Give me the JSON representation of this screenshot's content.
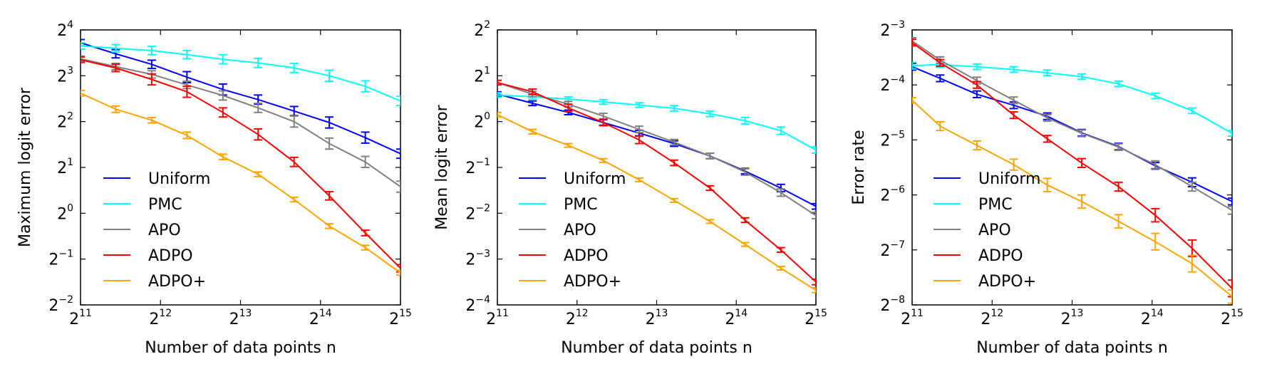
{
  "chart_data": [
    {
      "type": "line",
      "title": "",
      "xlabel": "Number of data points n",
      "ylabel": "Maximum logit error",
      "xscale": "log2",
      "yscale": "log2",
      "xlim_exp": [
        11,
        15
      ],
      "ylim_exp": [
        -2,
        4
      ],
      "x_ticks": [
        {
          "base": "2",
          "exp": "11"
        },
        {
          "base": "2",
          "exp": "12"
        },
        {
          "base": "2",
          "exp": "13"
        },
        {
          "base": "2",
          "exp": "14"
        },
        {
          "base": "2",
          "exp": "15"
        }
      ],
      "y_ticks": [
        {
          "base": "2",
          "exp": "−2",
          "v": -2
        },
        {
          "base": "2",
          "exp": "−1",
          "v": -1
        },
        {
          "base": "2",
          "exp": "0",
          "v": 0
        },
        {
          "base": "2",
          "exp": "1",
          "v": 1
        },
        {
          "base": "2",
          "exp": "2",
          "v": 2
        },
        {
          "base": "2",
          "exp": "3",
          "v": 3
        },
        {
          "base": "2",
          "exp": "4",
          "v": 4
        }
      ],
      "legend_position": "lower-left",
      "x_exp": [
        11.0,
        11.44,
        11.89,
        12.33,
        12.78,
        13.22,
        13.67,
        14.11,
        14.56,
        15.0
      ],
      "series": [
        {
          "name": "Uniform",
          "color": "#0000ff",
          "y_exp": [
            3.72,
            3.48,
            3.25,
            2.97,
            2.7,
            2.48,
            2.23,
            1.98,
            1.65,
            1.3
          ],
          "err": [
            0.07,
            0.09,
            0.09,
            0.12,
            0.12,
            0.1,
            0.1,
            0.12,
            0.12,
            0.1
          ]
        },
        {
          "name": "PMC",
          "color": "#00ffff",
          "y_exp": [
            3.65,
            3.6,
            3.55,
            3.46,
            3.36,
            3.28,
            3.17,
            3.0,
            2.77,
            2.45
          ],
          "err": [
            0.07,
            0.08,
            0.09,
            0.09,
            0.1,
            0.1,
            0.1,
            0.12,
            0.12,
            0.1
          ]
        },
        {
          "name": "APO",
          "color": "#808080",
          "y_exp": [
            3.37,
            3.2,
            3.03,
            2.8,
            2.57,
            2.3,
            2.0,
            1.52,
            1.12,
            0.58
          ],
          "err": [
            0.06,
            0.07,
            0.08,
            0.08,
            0.1,
            0.1,
            0.12,
            0.12,
            0.12,
            0.12
          ]
        },
        {
          "name": "ADPO",
          "color": "#ff0000",
          "y_exp": [
            3.35,
            3.17,
            2.92,
            2.65,
            2.2,
            1.72,
            1.12,
            0.38,
            -0.43,
            -1.2
          ],
          "err": [
            0.06,
            0.08,
            0.12,
            0.12,
            0.1,
            0.12,
            0.1,
            0.09,
            0.06,
            0.08
          ]
        },
        {
          "name": "ADPO+",
          "color": "#ffa500",
          "y_exp": [
            2.62,
            2.27,
            2.03,
            1.7,
            1.23,
            0.85,
            0.3,
            -0.28,
            -0.75,
            -1.3
          ],
          "err": [
            0.06,
            0.07,
            0.06,
            0.07,
            0.06,
            0.05,
            0.05,
            0.05,
            0.05,
            0.05
          ]
        }
      ]
    },
    {
      "type": "line",
      "title": "",
      "xlabel": "Number of data points n",
      "ylabel": "Mean logit error",
      "xscale": "log2",
      "yscale": "log2",
      "xlim_exp": [
        11,
        15
      ],
      "ylim_exp": [
        -4,
        2
      ],
      "x_ticks": [
        {
          "base": "2",
          "exp": "11"
        },
        {
          "base": "2",
          "exp": "12"
        },
        {
          "base": "2",
          "exp": "13"
        },
        {
          "base": "2",
          "exp": "14"
        },
        {
          "base": "2",
          "exp": "15"
        }
      ],
      "y_ticks": [
        {
          "base": "2",
          "exp": "−4",
          "v": -4
        },
        {
          "base": "2",
          "exp": "−3",
          "v": -3
        },
        {
          "base": "2",
          "exp": "−2",
          "v": -2
        },
        {
          "base": "2",
          "exp": "−1",
          "v": -1
        },
        {
          "base": "2",
          "exp": "0",
          "v": 0
        },
        {
          "base": "2",
          "exp": "1",
          "v": 1
        },
        {
          "base": "2",
          "exp": "2",
          "v": 2
        }
      ],
      "legend_position": "lower-left",
      "x_exp": [
        11.0,
        11.44,
        11.89,
        12.33,
        12.78,
        13.22,
        13.67,
        14.11,
        14.56,
        15.0
      ],
      "series": [
        {
          "name": "Uniform",
          "color": "#0000ff",
          "y_exp": [
            0.6,
            0.4,
            0.2,
            -0.02,
            -0.25,
            -0.48,
            -0.75,
            -1.08,
            -1.45,
            -1.85
          ],
          "err": [
            0.05,
            0.05,
            0.05,
            0.06,
            0.06,
            0.06,
            0.06,
            0.06,
            0.08,
            0.06
          ]
        },
        {
          "name": "PMC",
          "color": "#00ffff",
          "y_exp": [
            0.58,
            0.54,
            0.49,
            0.43,
            0.36,
            0.29,
            0.17,
            0.02,
            -0.2,
            -0.62
          ],
          "err": [
            0.05,
            0.05,
            0.05,
            0.05,
            0.05,
            0.06,
            0.06,
            0.07,
            0.08,
            0.07
          ]
        },
        {
          "name": "APO",
          "color": "#808080",
          "y_exp": [
            0.85,
            0.6,
            0.38,
            0.12,
            -0.17,
            -0.45,
            -0.75,
            -1.1,
            -1.55,
            -2.05
          ],
          "err": [
            0.05,
            0.06,
            0.06,
            0.06,
            0.07,
            0.06,
            0.06,
            0.07,
            0.08,
            0.07
          ]
        },
        {
          "name": "ADPO",
          "color": "#ff0000",
          "y_exp": [
            0.85,
            0.65,
            0.3,
            -0.02,
            -0.4,
            -0.9,
            -1.45,
            -2.15,
            -2.8,
            -3.5
          ],
          "err": [
            0.05,
            0.06,
            0.08,
            0.07,
            0.08,
            0.06,
            0.05,
            0.05,
            0.05,
            0.06
          ]
        },
        {
          "name": "ADPO+",
          "color": "#ffa500",
          "y_exp": [
            0.15,
            -0.22,
            -0.52,
            -0.85,
            -1.27,
            -1.72,
            -2.18,
            -2.68,
            -3.2,
            -3.68
          ],
          "err": [
            0.05,
            0.05,
            0.04,
            0.04,
            0.04,
            0.04,
            0.04,
            0.04,
            0.04,
            0.05
          ]
        }
      ]
    },
    {
      "type": "line",
      "title": "",
      "xlabel": "Number of data points n",
      "ylabel": "Error rate",
      "xscale": "log2",
      "yscale": "log2",
      "xlim_exp": [
        11,
        15
      ],
      "ylim_exp": [
        -8,
        -3
      ],
      "x_ticks": [
        {
          "base": "2",
          "exp": "11"
        },
        {
          "base": "2",
          "exp": "12"
        },
        {
          "base": "2",
          "exp": "13"
        },
        {
          "base": "2",
          "exp": "14"
        },
        {
          "base": "2",
          "exp": "15"
        }
      ],
      "y_ticks": [
        {
          "base": "2",
          "exp": "−8",
          "v": -8
        },
        {
          "base": "2",
          "exp": "−7",
          "v": -7
        },
        {
          "base": "2",
          "exp": "−6",
          "v": -6
        },
        {
          "base": "2",
          "exp": "−5",
          "v": -5
        },
        {
          "base": "2",
          "exp": "−4",
          "v": -4
        },
        {
          "base": "2",
          "exp": "−3",
          "v": -3
        }
      ],
      "legend_position": "lower-left",
      "x_exp": [
        11.0,
        11.35,
        11.81,
        12.27,
        12.69,
        13.12,
        13.58,
        14.04,
        14.5,
        15.0
      ],
      "series": [
        {
          "name": "Uniform",
          "color": "#0000ff",
          "y_exp": [
            -3.67,
            -3.88,
            -4.17,
            -4.37,
            -4.57,
            -4.87,
            -5.12,
            -5.47,
            -5.77,
            -6.12
          ],
          "err": [
            0.06,
            0.06,
            0.06,
            0.06,
            0.06,
            0.06,
            0.06,
            0.06,
            0.08,
            0.06
          ]
        },
        {
          "name": "PMC",
          "color": "#00ffff",
          "y_exp": [
            -3.65,
            -3.63,
            -3.67,
            -3.72,
            -3.78,
            -3.85,
            -3.98,
            -4.2,
            -4.47,
            -4.88
          ],
          "err": [
            0.06,
            0.05,
            0.05,
            0.05,
            0.05,
            0.05,
            0.05,
            0.05,
            0.05,
            0.05
          ]
        },
        {
          "name": "APO",
          "color": "#808080",
          "y_exp": [
            -3.2,
            -3.55,
            -3.92,
            -4.28,
            -4.6,
            -4.88,
            -5.13,
            -5.45,
            -5.85,
            -6.28
          ],
          "err": [
            0.06,
            0.06,
            0.06,
            0.06,
            0.06,
            0.06,
            0.06,
            0.07,
            0.08,
            0.07
          ]
        },
        {
          "name": "ADPO",
          "color": "#ff0000",
          "y_exp": [
            -3.23,
            -3.6,
            -4.0,
            -4.55,
            -4.98,
            -5.42,
            -5.85,
            -6.37,
            -6.97,
            -7.7
          ],
          "err": [
            0.06,
            0.06,
            0.06,
            0.06,
            0.06,
            0.08,
            0.08,
            0.12,
            0.15,
            0.15
          ]
        },
        {
          "name": "ADPO+",
          "color": "#ffa500",
          "y_exp": [
            -4.28,
            -4.75,
            -5.1,
            -5.45,
            -5.82,
            -6.12,
            -6.48,
            -6.85,
            -7.25,
            -7.85
          ],
          "err": [
            0.05,
            0.08,
            0.08,
            0.1,
            0.12,
            0.12,
            0.12,
            0.15,
            0.15,
            0.12
          ]
        }
      ]
    }
  ]
}
